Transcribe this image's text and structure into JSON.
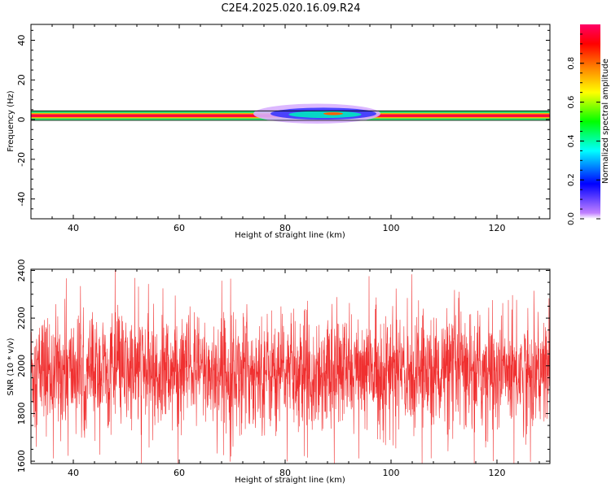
{
  "title": "C2E4.2025.020.16.09.R24",
  "colors": {
    "snr_line": "#f03030",
    "axis": "#000000",
    "background": "#ffffff"
  },
  "chart_data": [
    {
      "type": "heatmap",
      "xlabel": "Height of straight line (km)",
      "ylabel": "Frequency (Hz)",
      "xlim": [
        32,
        130
      ],
      "ylim": [
        -50,
        48
      ],
      "x_ticks": [
        40,
        60,
        80,
        100,
        120
      ],
      "y_ticks": [
        -40,
        -20,
        0,
        20,
        40
      ],
      "colorbar": {
        "label": "Normalized spectral amplitude",
        "range": [
          0,
          1
        ],
        "ticks": [
          "0.0",
          "0.2",
          "0.4",
          "0.6",
          "0.8"
        ],
        "colormap": [
          "#b36bff",
          "#0000ff",
          "#00ffff",
          "#00ff00",
          "#ffff00",
          "#ff8000",
          "#ff0000",
          "#ff0070"
        ]
      },
      "band": {
        "center_hz": 2,
        "core_halfwidth_hz": 0.7,
        "halo_halfwidth_hz": 2.4,
        "feature": {
          "x_range": [
            74,
            98
          ],
          "center_hz": 3,
          "spread_hz": 5
        }
      }
    },
    {
      "type": "line",
      "xlabel": "Height of straight line (km)",
      "ylabel": "SNR (10 * v/v)",
      "xlim": [
        32,
        130
      ],
      "ylim": [
        1590,
        2405
      ],
      "x_ticks": [
        40,
        60,
        80,
        100,
        120
      ],
      "y_ticks": [
        1600,
        1800,
        2000,
        2200,
        2400
      ],
      "series": [
        {
          "mean": 1975,
          "spread": 120,
          "max": 2400,
          "min": 1580,
          "samples": 2400
        }
      ]
    }
  ]
}
